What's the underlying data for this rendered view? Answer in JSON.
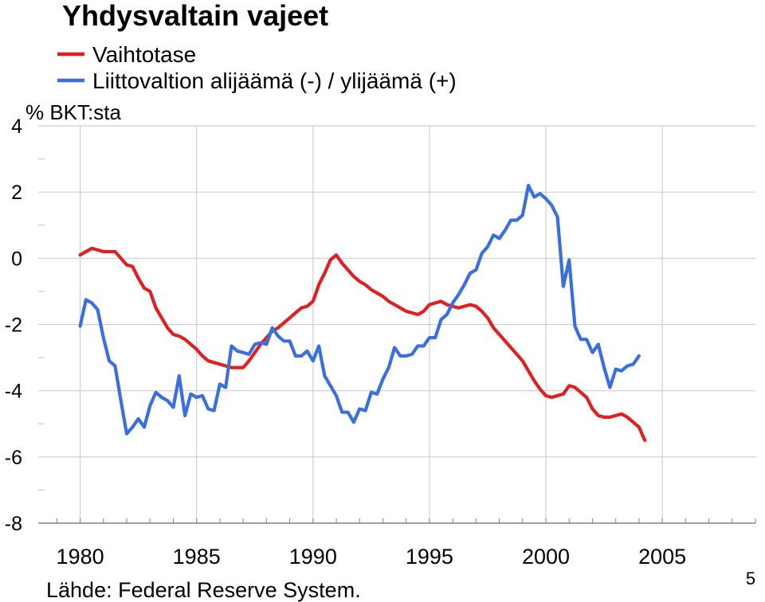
{
  "chart_data": {
    "type": "line",
    "title": "Yhdysvaltain vajeet",
    "ylabel": "% BKT:sta",
    "xlabel": "",
    "xlim": [
      1978.2,
      2009.0
    ],
    "ylim": [
      -8,
      4
    ],
    "yticks": [
      4,
      2,
      0,
      -2,
      -4,
      -6,
      -8
    ],
    "ytick_labels": [
      "4",
      "2",
      "0",
      "-2",
      "-4",
      "-6",
      "-8"
    ],
    "xticks": [
      1980,
      1985,
      1990,
      1995,
      2000,
      2005
    ],
    "xtick_labels": [
      "1980",
      "1985",
      "1990",
      "1995",
      "2000",
      "2005"
    ],
    "grid": true,
    "legend_position": "top-left",
    "series": [
      {
        "name": "Vaihtotase",
        "color": "#e02020",
        "points": [
          [
            1980.0,
            0.1
          ],
          [
            1980.25,
            0.2
          ],
          [
            1980.5,
            0.3
          ],
          [
            1980.75,
            0.25
          ],
          [
            1981.0,
            0.2
          ],
          [
            1981.25,
            0.2
          ],
          [
            1981.5,
            0.2
          ],
          [
            1981.75,
            0.0
          ],
          [
            1982.0,
            -0.2
          ],
          [
            1982.25,
            -0.25
          ],
          [
            1982.5,
            -0.6
          ],
          [
            1982.75,
            -0.9
          ],
          [
            1983.0,
            -1.0
          ],
          [
            1983.25,
            -1.5
          ],
          [
            1983.5,
            -1.8
          ],
          [
            1983.75,
            -2.1
          ],
          [
            1984.0,
            -2.3
          ],
          [
            1984.25,
            -2.35
          ],
          [
            1984.5,
            -2.45
          ],
          [
            1984.75,
            -2.6
          ],
          [
            1985.0,
            -2.75
          ],
          [
            1985.25,
            -2.95
          ],
          [
            1985.5,
            -3.1
          ],
          [
            1985.75,
            -3.15
          ],
          [
            1986.0,
            -3.2
          ],
          [
            1986.25,
            -3.25
          ],
          [
            1986.5,
            -3.3
          ],
          [
            1986.75,
            -3.3
          ],
          [
            1987.0,
            -3.3
          ],
          [
            1987.25,
            -3.1
          ],
          [
            1987.5,
            -2.85
          ],
          [
            1987.75,
            -2.6
          ],
          [
            1988.0,
            -2.4
          ],
          [
            1988.25,
            -2.2
          ],
          [
            1988.5,
            -2.1
          ],
          [
            1988.75,
            -1.95
          ],
          [
            1989.0,
            -1.8
          ],
          [
            1989.25,
            -1.65
          ],
          [
            1989.5,
            -1.5
          ],
          [
            1989.75,
            -1.45
          ],
          [
            1990.0,
            -1.3
          ],
          [
            1990.25,
            -0.8
          ],
          [
            1990.5,
            -0.45
          ],
          [
            1990.75,
            -0.05
          ],
          [
            1991.0,
            0.1
          ],
          [
            1991.25,
            -0.15
          ],
          [
            1991.5,
            -0.35
          ],
          [
            1991.75,
            -0.55
          ],
          [
            1992.0,
            -0.7
          ],
          [
            1992.25,
            -0.8
          ],
          [
            1992.5,
            -0.95
          ],
          [
            1992.75,
            -1.05
          ],
          [
            1993.0,
            -1.15
          ],
          [
            1993.25,
            -1.3
          ],
          [
            1993.5,
            -1.4
          ],
          [
            1993.75,
            -1.5
          ],
          [
            1994.0,
            -1.6
          ],
          [
            1994.25,
            -1.65
          ],
          [
            1994.5,
            -1.7
          ],
          [
            1994.75,
            -1.6
          ],
          [
            1995.0,
            -1.4
          ],
          [
            1995.25,
            -1.35
          ],
          [
            1995.5,
            -1.3
          ],
          [
            1995.75,
            -1.4
          ],
          [
            1996.0,
            -1.45
          ],
          [
            1996.25,
            -1.5
          ],
          [
            1996.5,
            -1.45
          ],
          [
            1996.75,
            -1.4
          ],
          [
            1997.0,
            -1.45
          ],
          [
            1997.25,
            -1.6
          ],
          [
            1997.5,
            -1.8
          ],
          [
            1997.75,
            -2.1
          ],
          [
            1998.0,
            -2.3
          ],
          [
            1998.25,
            -2.5
          ],
          [
            1998.5,
            -2.7
          ],
          [
            1998.75,
            -2.9
          ],
          [
            1999.0,
            -3.1
          ],
          [
            1999.25,
            -3.4
          ],
          [
            1999.5,
            -3.7
          ],
          [
            1999.75,
            -3.95
          ],
          [
            2000.0,
            -4.15
          ],
          [
            2000.25,
            -4.2
          ],
          [
            2000.5,
            -4.15
          ],
          [
            2000.75,
            -4.1
          ],
          [
            2001.0,
            -3.85
          ],
          [
            2001.25,
            -3.9
          ],
          [
            2001.5,
            -4.05
          ],
          [
            2001.75,
            -4.2
          ],
          [
            2002.0,
            -4.55
          ],
          [
            2002.25,
            -4.75
          ],
          [
            2002.5,
            -4.8
          ],
          [
            2002.75,
            -4.8
          ],
          [
            2003.0,
            -4.75
          ],
          [
            2003.25,
            -4.7
          ],
          [
            2003.5,
            -4.8
          ],
          [
            2003.75,
            -4.95
          ],
          [
            2004.0,
            -5.1
          ],
          [
            2004.25,
            -5.5
          ]
        ]
      },
      {
        "name": "Liittovaltion alijäämä (-) / ylijäämä (+)",
        "color": "#3a6fe0",
        "points": [
          [
            1980.0,
            -2.05
          ],
          [
            1980.25,
            -1.25
          ],
          [
            1980.5,
            -1.35
          ],
          [
            1980.75,
            -1.55
          ],
          [
            1981.0,
            -2.4
          ],
          [
            1981.25,
            -3.1
          ],
          [
            1981.5,
            -3.25
          ],
          [
            1981.75,
            -4.3
          ],
          [
            1982.0,
            -5.3
          ],
          [
            1982.25,
            -5.1
          ],
          [
            1982.5,
            -4.85
          ],
          [
            1982.75,
            -5.1
          ],
          [
            1983.0,
            -4.45
          ],
          [
            1983.25,
            -4.05
          ],
          [
            1983.5,
            -4.2
          ],
          [
            1983.75,
            -4.3
          ],
          [
            1984.0,
            -4.5
          ],
          [
            1984.25,
            -3.55
          ],
          [
            1984.5,
            -4.75
          ],
          [
            1984.75,
            -4.1
          ],
          [
            1985.0,
            -4.2
          ],
          [
            1985.25,
            -4.15
          ],
          [
            1985.5,
            -4.55
          ],
          [
            1985.75,
            -4.6
          ],
          [
            1986.0,
            -3.8
          ],
          [
            1986.25,
            -3.9
          ],
          [
            1986.5,
            -2.65
          ],
          [
            1986.75,
            -2.8
          ],
          [
            1987.0,
            -2.85
          ],
          [
            1987.25,
            -2.9
          ],
          [
            1987.5,
            -2.6
          ],
          [
            1987.75,
            -2.55
          ],
          [
            1988.0,
            -2.6
          ],
          [
            1988.25,
            -2.1
          ],
          [
            1988.5,
            -2.35
          ],
          [
            1988.75,
            -2.5
          ],
          [
            1989.0,
            -2.5
          ],
          [
            1989.25,
            -2.95
          ],
          [
            1989.5,
            -2.95
          ],
          [
            1989.75,
            -2.8
          ],
          [
            1990.0,
            -3.1
          ],
          [
            1990.25,
            -2.65
          ],
          [
            1990.5,
            -3.55
          ],
          [
            1990.75,
            -3.85
          ],
          [
            1991.0,
            -4.15
          ],
          [
            1991.25,
            -4.65
          ],
          [
            1991.5,
            -4.65
          ],
          [
            1991.75,
            -4.95
          ],
          [
            1992.0,
            -4.55
          ],
          [
            1992.25,
            -4.6
          ],
          [
            1992.5,
            -4.05
          ],
          [
            1992.75,
            -4.1
          ],
          [
            1993.0,
            -3.65
          ],
          [
            1993.25,
            -3.3
          ],
          [
            1993.5,
            -2.7
          ],
          [
            1993.75,
            -2.95
          ],
          [
            1994.0,
            -2.95
          ],
          [
            1994.25,
            -2.9
          ],
          [
            1994.5,
            -2.65
          ],
          [
            1994.75,
            -2.65
          ],
          [
            1995.0,
            -2.4
          ],
          [
            1995.25,
            -2.4
          ],
          [
            1995.5,
            -1.85
          ],
          [
            1995.75,
            -1.7
          ],
          [
            1996.0,
            -1.35
          ],
          [
            1996.25,
            -1.1
          ],
          [
            1996.5,
            -0.8
          ],
          [
            1996.75,
            -0.45
          ],
          [
            1997.0,
            -0.35
          ],
          [
            1997.25,
            0.15
          ],
          [
            1997.5,
            0.35
          ],
          [
            1997.75,
            0.7
          ],
          [
            1998.0,
            0.6
          ],
          [
            1998.25,
            0.85
          ],
          [
            1998.5,
            1.15
          ],
          [
            1998.75,
            1.15
          ],
          [
            1999.0,
            1.3
          ],
          [
            1999.25,
            2.2
          ],
          [
            1999.5,
            1.85
          ],
          [
            1999.75,
            1.95
          ],
          [
            2000.0,
            1.8
          ],
          [
            2000.25,
            1.6
          ],
          [
            2000.5,
            1.25
          ],
          [
            2000.75,
            -0.85
          ],
          [
            2001.0,
            -0.05
          ],
          [
            2001.25,
            -2.05
          ],
          [
            2001.5,
            -2.45
          ],
          [
            2001.75,
            -2.45
          ],
          [
            2002.0,
            -2.85
          ],
          [
            2002.25,
            -2.6
          ],
          [
            2002.5,
            -3.3
          ],
          [
            2002.75,
            -3.9
          ],
          [
            2003.0,
            -3.35
          ],
          [
            2003.25,
            -3.4
          ],
          [
            2003.5,
            -3.25
          ],
          [
            2003.75,
            -3.2
          ],
          [
            2004.0,
            -2.95
          ]
        ]
      }
    ]
  },
  "source": "Lähde: Federal Reserve System.",
  "page_number": "5"
}
